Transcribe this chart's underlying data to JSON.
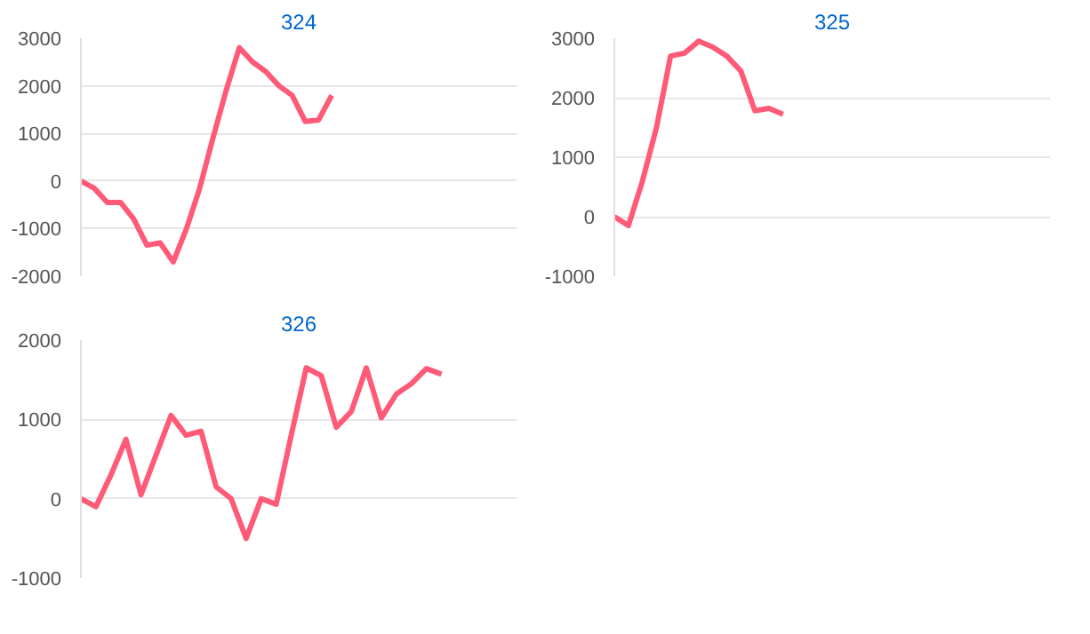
{
  "chart_data": [
    {
      "type": "line",
      "title": "324",
      "categories": [
        null,
        null,
        null,
        null,
        null,
        null,
        null,
        null,
        null,
        null,
        null,
        null,
        null,
        null,
        null,
        null,
        null,
        null,
        null,
        null,
        null,
        null,
        null,
        null,
        null,
        null,
        null,
        null,
        null,
        null,
        null,
        null,
        null,
        null
      ],
      "series": [
        {
          "color": "#ff5a78",
          "values": [
            0,
            -150,
            -450,
            -450,
            -800,
            -1350,
            -1300,
            -1700,
            -1000,
            -150,
            900,
            1900,
            2800,
            2500,
            2300,
            2000,
            1800,
            1250,
            1280,
            1800,
            null,
            null,
            null,
            null,
            null,
            null,
            null,
            null,
            null,
            null,
            null,
            null,
            null,
            null
          ]
        }
      ],
      "ylim": [
        -2000,
        3000
      ],
      "yticks": [
        -2000,
        -1000,
        0,
        1000,
        2000,
        3000
      ],
      "grid": "y",
      "marker": "none",
      "line_style": "solid"
    },
    {
      "type": "line",
      "title": "325",
      "categories": [
        null,
        null,
        null,
        null,
        null,
        null,
        null,
        null,
        null,
        null,
        null,
        null,
        null,
        null,
        null,
        null,
        null,
        null,
        null,
        null,
        null,
        null,
        null,
        null,
        null,
        null,
        null,
        null,
        null,
        null,
        null,
        null
      ],
      "series": [
        {
          "color": "#ff5a78",
          "values": [
            0,
            -150,
            600,
            1500,
            2700,
            2750,
            2950,
            2850,
            2700,
            2450,
            1780,
            1820,
            1720,
            null,
            null,
            null,
            null,
            null,
            null,
            null,
            null,
            null,
            null,
            null,
            null,
            null,
            null,
            null,
            null,
            null,
            null,
            null
          ]
        }
      ],
      "ylim": [
        -1000,
        3000
      ],
      "yticks": [
        -1000,
        0,
        1000,
        2000,
        3000
      ],
      "grid": "y",
      "marker": "none",
      "line_style": "solid"
    },
    {
      "type": "line",
      "title": "326",
      "categories": [
        null,
        null,
        null,
        null,
        null,
        null,
        null,
        null,
        null,
        null,
        null,
        null,
        null,
        null,
        null,
        null,
        null,
        null,
        null,
        null,
        null,
        null,
        null,
        null,
        null,
        null,
        null,
        null,
        null,
        null
      ],
      "series": [
        {
          "color": "#ff5a78",
          "values": [
            0,
            -100,
            300,
            750,
            50,
            550,
            1050,
            800,
            850,
            150,
            0,
            -500,
            0,
            -70,
            800,
            1650,
            1550,
            900,
            1100,
            1650,
            1020,
            1320,
            1450,
            1640,
            1570,
            null,
            null,
            null,
            null,
            null
          ]
        }
      ],
      "ylim": [
        -1000,
        2000
      ],
      "yticks": [
        -1000,
        0,
        1000,
        2000
      ],
      "grid": "y",
      "marker": "none",
      "line_style": "solid"
    }
  ]
}
